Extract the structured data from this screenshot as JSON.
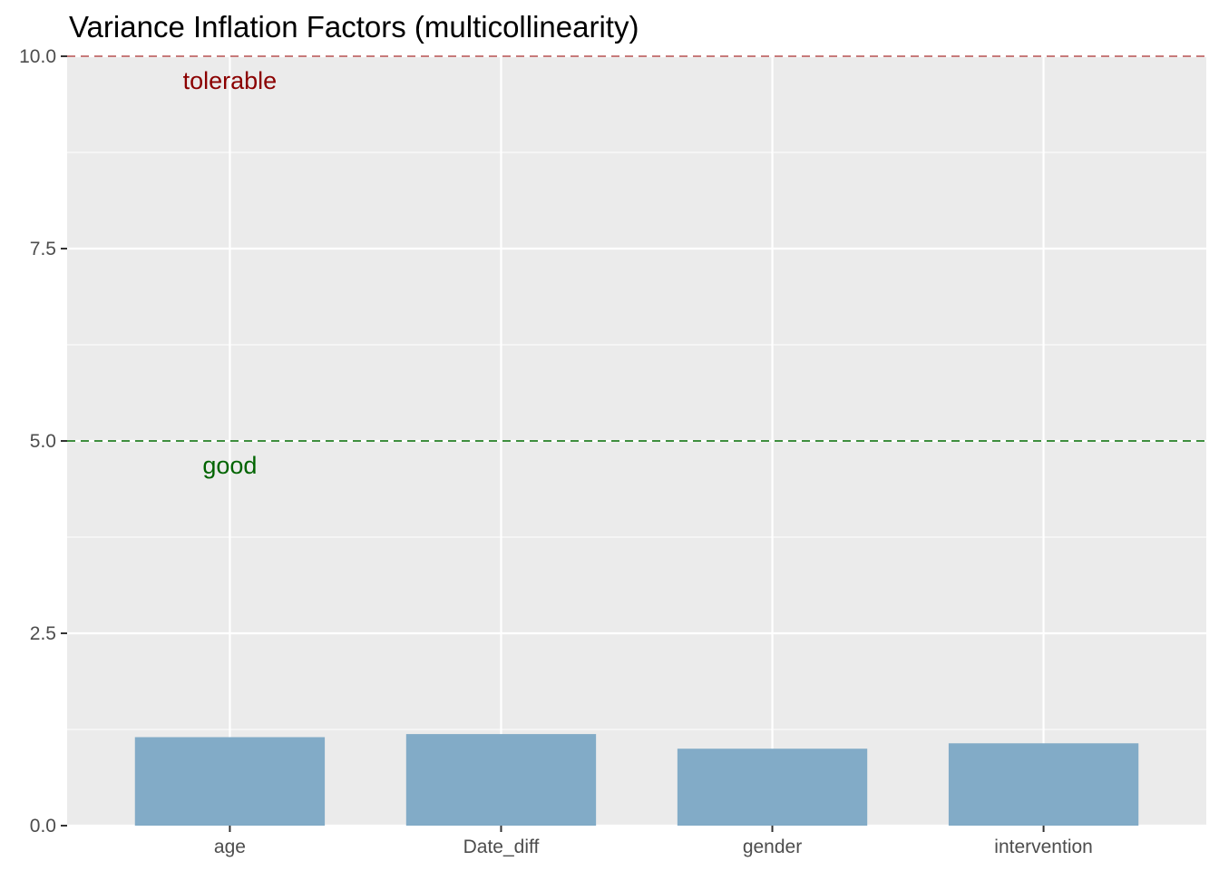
{
  "chart_data": {
    "type": "bar",
    "title": "Variance Inflation Factors (multicollinearity)",
    "xlabel": "",
    "ylabel": "",
    "categories": [
      "age",
      "Date_diff",
      "gender",
      "intervention"
    ],
    "values": [
      1.15,
      1.19,
      1.0,
      1.07
    ],
    "ylim": [
      0,
      10
    ],
    "yticks": [
      "0.0",
      "2.5",
      "5.0",
      "7.5",
      "10.0"
    ],
    "ytick_values": [
      0,
      2.5,
      5,
      7.5,
      10
    ],
    "grid": true,
    "bar_color": "#82abc7",
    "panel_background": "#ebebeb",
    "reference_lines": [
      {
        "value": 10,
        "label": "tolerable",
        "color": "#8b0000",
        "line_color": "#c77a7a"
      },
      {
        "value": 5,
        "label": "good",
        "color": "#006400",
        "line_color": "#3f8f3f"
      }
    ]
  }
}
